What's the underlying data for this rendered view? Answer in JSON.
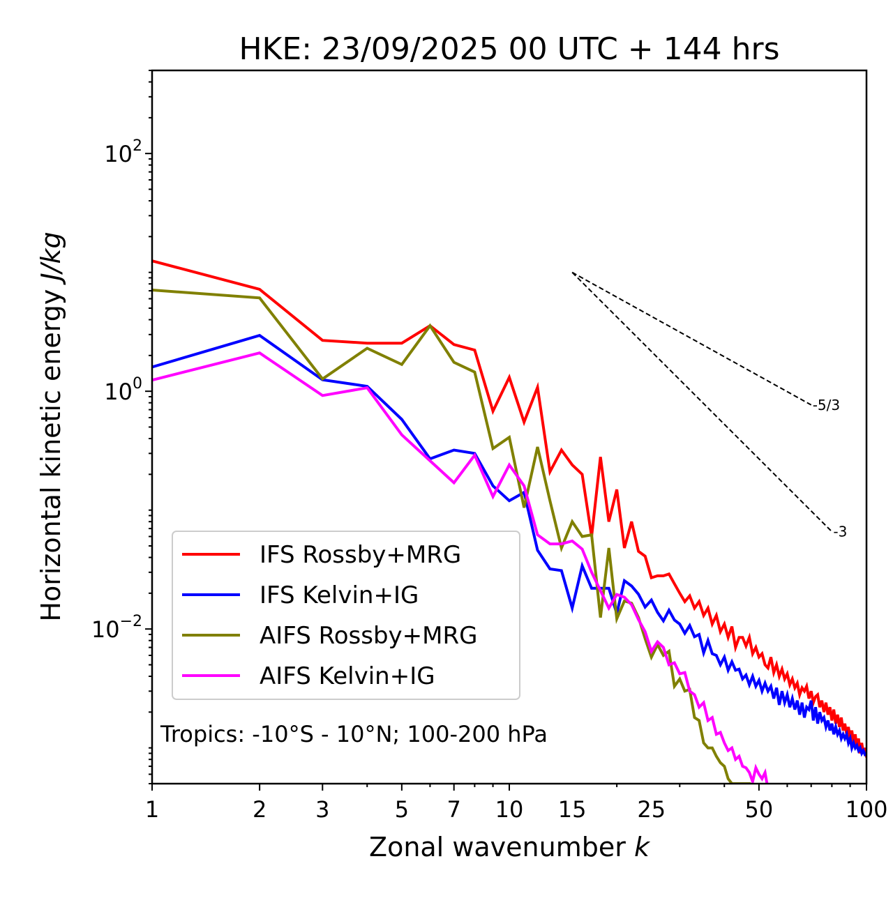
{
  "chart_data": {
    "type": "line",
    "title": "HKE: 23/09/2025 00 UTC + 144 hrs",
    "xlabel": "Zonal wavenumber",
    "xlabel_italic": "k",
    "ylabel": "Horizontal kinetic energy",
    "ylabel_italic": "J/kg",
    "xscale": "log",
    "yscale": "log",
    "xlim": [
      1,
      100
    ],
    "ylim": [
      0.0005,
      500
    ],
    "x_ticks": [
      1,
      2,
      3,
      5,
      7,
      10,
      15,
      25,
      50,
      100
    ],
    "x_tick_labels": [
      "1",
      "2",
      "3",
      "5",
      "7",
      "10",
      "15",
      "25",
      "50",
      "100"
    ],
    "y_ticks": [
      0.01,
      1,
      100
    ],
    "y_tick_labels": [
      {
        "base": "10",
        "exp": "−2"
      },
      {
        "base": "10",
        "exp": "0"
      },
      {
        "base": "10",
        "exp": "2"
      }
    ],
    "grid": false,
    "legend_position": "lower-left",
    "annotation": "Tropics: -10°S - 10°N; 100-200 hPa",
    "reference_slopes": [
      {
        "label": "-5/3",
        "slope": -1.6667,
        "k_start": 15,
        "k_end": 70,
        "value_start": 10.0
      },
      {
        "label": "-3",
        "slope": -3,
        "k_start": 15,
        "k_end": 80,
        "value_start": 10.0
      }
    ],
    "series": [
      {
        "name": "IFS Rossby+MRG",
        "color": "#ff0000",
        "k_start": 1,
        "values": [
          12.5,
          7.2,
          2.68,
          2.54,
          2.54,
          3.56,
          2.47,
          2.22,
          0.68,
          1.31,
          0.55,
          1.08,
          0.21,
          0.32,
          0.24,
          0.2,
          0.06,
          0.28,
          0.08,
          0.149,
          0.048,
          0.08,
          0.045,
          0.041,
          0.027,
          0.028,
          0.028,
          0.029,
          0.024,
          0.02,
          0.017,
          0.019,
          0.015,
          0.017,
          0.013,
          0.015,
          0.011,
          0.013,
          0.0095,
          0.011,
          0.0085,
          0.0105,
          0.007,
          0.0085,
          0.0085,
          0.0072,
          0.0085,
          0.0062,
          0.007,
          0.0058,
          0.0062,
          0.005,
          0.0047,
          0.0058,
          0.0043,
          0.005,
          0.004,
          0.0046,
          0.0038,
          0.0042,
          0.0034,
          0.0038,
          0.0032,
          0.0035,
          0.0028,
          0.0032,
          0.003,
          0.0033,
          0.0026,
          0.003,
          0.0024,
          0.0027,
          0.0028,
          0.0022,
          0.0025,
          0.002,
          0.0024,
          0.0019,
          0.0022,
          0.0017,
          0.0021,
          0.0016,
          0.0019,
          0.0015,
          0.0018,
          0.0014,
          0.0016,
          0.0013,
          0.0015,
          0.0012,
          0.0014,
          0.0011,
          0.0013,
          0.001,
          0.0012,
          0.0009,
          0.0011,
          0.0009,
          0.001,
          0.00085
        ]
      },
      {
        "name": "IFS Kelvin+IG",
        "color": "#0000ff",
        "k_start": 1,
        "values": [
          1.6,
          2.95,
          1.25,
          1.1,
          0.58,
          0.27,
          0.32,
          0.3,
          0.16,
          0.12,
          0.141,
          0.046,
          0.032,
          0.031,
          0.015,
          0.034,
          0.022,
          0.022,
          0.022,
          0.0135,
          0.0255,
          0.023,
          0.0196,
          0.0153,
          0.0175,
          0.0138,
          0.0117,
          0.0144,
          0.0119,
          0.011,
          0.0092,
          0.0107,
          0.0086,
          0.009,
          0.0063,
          0.008,
          0.0062,
          0.006,
          0.005,
          0.0058,
          0.0045,
          0.0053,
          0.0045,
          0.0046,
          0.0038,
          0.0041,
          0.0034,
          0.004,
          0.0033,
          0.0037,
          0.003,
          0.0035,
          0.003,
          0.0033,
          0.0026,
          0.0032,
          0.0023,
          0.003,
          0.0024,
          0.0028,
          0.0022,
          0.0026,
          0.0021,
          0.0025,
          0.0019,
          0.0024,
          0.0018,
          0.0022,
          0.0021,
          0.0025,
          0.0017,
          0.0022,
          0.0016,
          0.002,
          0.0017,
          0.0018,
          0.0015,
          0.0017,
          0.0014,
          0.0016,
          0.0013,
          0.0015,
          0.0013,
          0.0014,
          0.0012,
          0.0013,
          0.0012,
          0.0013,
          0.0011,
          0.0012,
          0.001,
          0.0011,
          0.001,
          0.00105,
          0.00095,
          0.001,
          0.0009,
          0.00095,
          0.00088,
          0.0009
        ]
      },
      {
        "name": "AIFS Rossby+MRG",
        "color": "#808000",
        "k_start": 1,
        "values": [
          7.1,
          6.1,
          1.27,
          2.3,
          1.68,
          3.56,
          1.75,
          1.45,
          0.33,
          0.41,
          0.105,
          0.34,
          0.12,
          0.048,
          0.08,
          0.06,
          0.062,
          0.0125,
          0.048,
          0.0122,
          0.0172,
          0.0165,
          0.0125,
          0.0083,
          0.0058,
          0.0074,
          0.006,
          0.0065,
          0.0033,
          0.0038,
          0.003,
          0.0031,
          0.0018,
          0.0017,
          0.0011,
          0.001,
          0.001,
          0.00085,
          0.00075,
          0.0007,
          0.00055,
          0.0005,
          0.0005,
          0.0005,
          0.0005,
          0.0005,
          0.0005
        ]
      },
      {
        "name": "AIFS Kelvin+IG",
        "color": "#ff00ff",
        "k_start": 1,
        "values": [
          1.24,
          2.1,
          0.92,
          1.07,
          0.43,
          0.26,
          0.17,
          0.29,
          0.13,
          0.24,
          0.16,
          0.062,
          0.052,
          0.052,
          0.055,
          0.047,
          0.03,
          0.021,
          0.015,
          0.0195,
          0.0185,
          0.016,
          0.012,
          0.0095,
          0.0065,
          0.0078,
          0.007,
          0.005,
          0.0052,
          0.0042,
          0.0043,
          0.003,
          0.0028,
          0.0022,
          0.0024,
          0.0017,
          0.0018,
          0.0013,
          0.00135,
          0.0011,
          0.00095,
          0.001,
          0.0008,
          0.00085,
          0.0007,
          0.00068,
          0.00062,
          0.00052,
          0.00068,
          0.0006,
          0.00055,
          0.00062,
          0.00045
        ]
      }
    ]
  }
}
